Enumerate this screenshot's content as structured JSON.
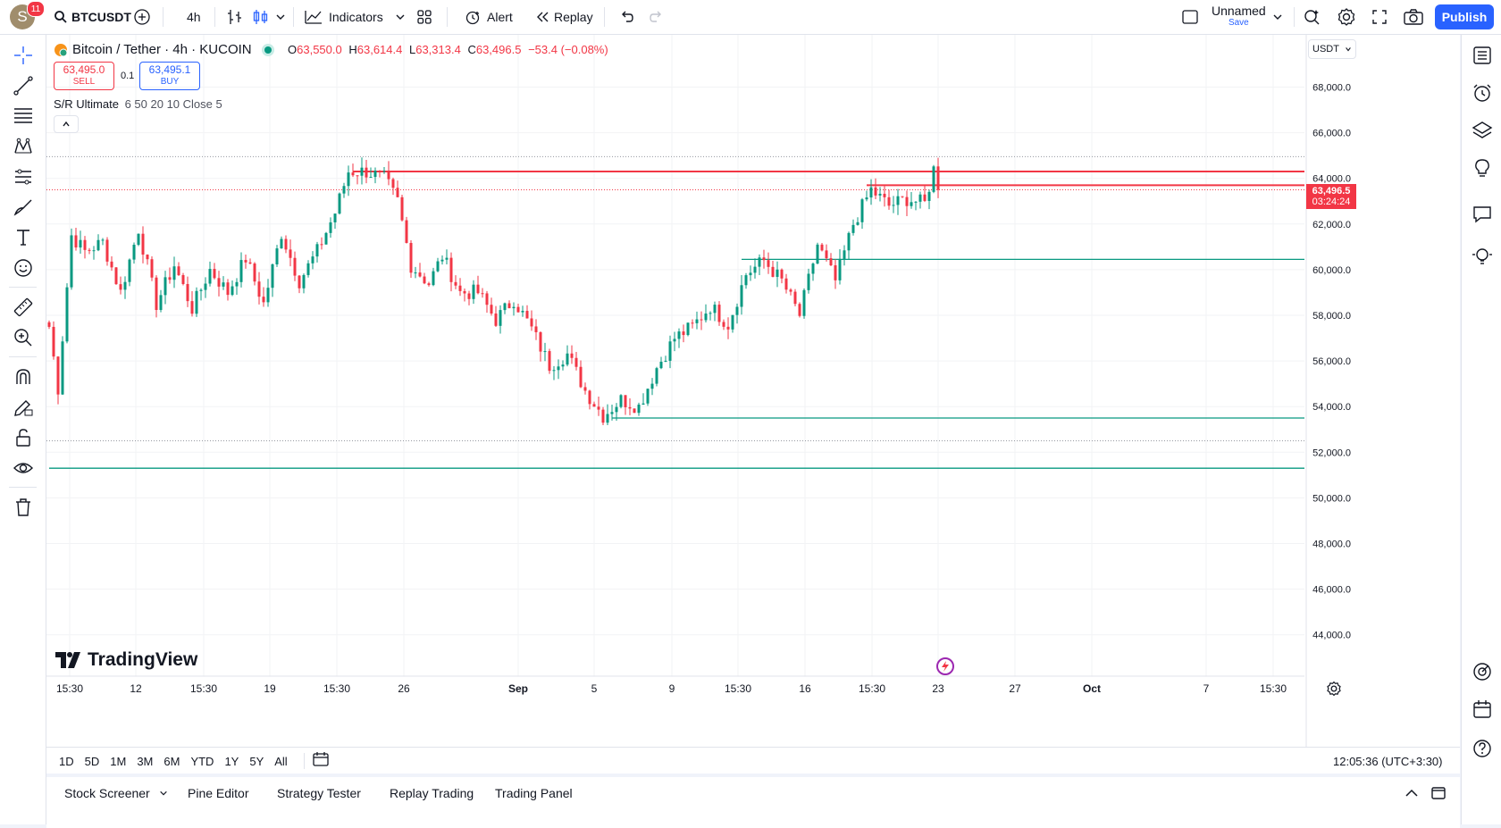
{
  "header": {
    "avatar_letter": "S",
    "notification_count": "11",
    "symbol": "BTCUSDT",
    "interval": "4h",
    "indicators_label": "Indicators",
    "alert_label": "Alert",
    "replay_label": "Replay",
    "layout_name": "Unnamed",
    "layout_status": "Save",
    "publish_label": "Publish"
  },
  "legend": {
    "title": "Bitcoin / Tether · 4h · KUCOIN",
    "o_label": "O",
    "o": "63,550.0",
    "h_label": "H",
    "h": "63,614.4",
    "l_label": "L",
    "l": "63,313.4",
    "c_label": "C",
    "c": "63,496.5",
    "change": "−53.4 (−0.08%)",
    "sell_price": "63,495.0",
    "sell_label": "SELL",
    "spread": "0.1",
    "buy_price": "63,495.1",
    "buy_label": "BUY",
    "indicator": "S/R Ultimate",
    "indicator_params": "6 50 20 10 Close 5",
    "currency": "USDT"
  },
  "colors": {
    "up": "#089981",
    "down": "#f23645",
    "accent": "#2962ff"
  },
  "chart_data": {
    "type": "candlestick",
    "symbol": "BTCUSDT",
    "interval": "4h",
    "ylim": [
      42000,
      70000
    ],
    "y_ticks": [
      "68,000.0",
      "66,000.0",
      "64,000.0",
      "62,000.0",
      "60,000.0",
      "58,000.0",
      "56,000.0",
      "54,000.0",
      "52,000.0",
      "50,000.0",
      "48,000.0",
      "46,000.0",
      "44,000.0"
    ],
    "x_ticks": [
      "15:30",
      "12",
      "15:30",
      "19",
      "15:30",
      "26",
      "Sep",
      "5",
      "9",
      "15:30",
      "16",
      "15:30",
      "23",
      "27",
      "Oct",
      "7",
      "15:30"
    ],
    "last_price": "63,496.5",
    "countdown": "03:24:24",
    "price_path": [
      [
        0,
        57500
      ],
      [
        2,
        54800
      ],
      [
        5,
        61500
      ],
      [
        8,
        60800
      ],
      [
        12,
        61200
      ],
      [
        16,
        59000
      ],
      [
        20,
        61800
      ],
      [
        24,
        58500
      ],
      [
        28,
        60200
      ],
      [
        32,
        58300
      ],
      [
        36,
        60000
      ],
      [
        40,
        59000
      ],
      [
        44,
        60500
      ],
      [
        48,
        58500
      ],
      [
        52,
        61600
      ],
      [
        56,
        59500
      ],
      [
        60,
        60800
      ],
      [
        64,
        62500
      ],
      [
        67,
        64300
      ],
      [
        71,
        64300
      ],
      [
        75,
        64000
      ],
      [
        78,
        63000
      ],
      [
        81,
        60200
      ],
      [
        85,
        59400
      ],
      [
        88,
        60600
      ],
      [
        92,
        59000
      ],
      [
        96,
        59000
      ],
      [
        100,
        57800
      ],
      [
        104,
        58700
      ],
      [
        108,
        57400
      ],
      [
        112,
        55800
      ],
      [
        116,
        56300
      ],
      [
        120,
        54700
      ],
      [
        124,
        53600
      ],
      [
        128,
        54300
      ],
      [
        132,
        54000
      ],
      [
        136,
        55700
      ],
      [
        140,
        57000
      ],
      [
        144,
        57500
      ],
      [
        148,
        58400
      ],
      [
        152,
        57600
      ],
      [
        156,
        59800
      ],
      [
        160,
        60400
      ],
      [
        164,
        59500
      ],
      [
        168,
        58000
      ],
      [
        172,
        61100
      ],
      [
        176,
        59500
      ],
      [
        180,
        62000
      ],
      [
        184,
        63500
      ],
      [
        188,
        62800
      ],
      [
        192,
        63100
      ],
      [
        196,
        62900
      ],
      [
        198,
        64400
      ],
      [
        199,
        63497
      ]
    ],
    "sr_levels": [
      {
        "price": 64300,
        "color": "#f23645",
        "start_bar": 68
      },
      {
        "price": 63700,
        "color": "#f23645",
        "start_bar": 183
      },
      {
        "price": 60450,
        "color": "#089981",
        "start_bar": 155
      },
      {
        "price": 53500,
        "color": "#089981",
        "start_bar": 126
      },
      {
        "price": 51300,
        "color": "#089981",
        "start_bar": 0
      }
    ],
    "dotted_levels": [
      64950,
      63497,
      52500
    ]
  },
  "rangebar": {
    "ranges": [
      "1D",
      "5D",
      "1M",
      "3M",
      "6M",
      "YTD",
      "1Y",
      "5Y",
      "All"
    ],
    "clock": "12:05:36 (UTC+3:30)"
  },
  "bottom": {
    "tabs": [
      "Stock Screener",
      "Pine Editor",
      "Strategy Tester",
      "Replay Trading",
      "Trading Panel"
    ]
  },
  "watermark": "TradingView"
}
